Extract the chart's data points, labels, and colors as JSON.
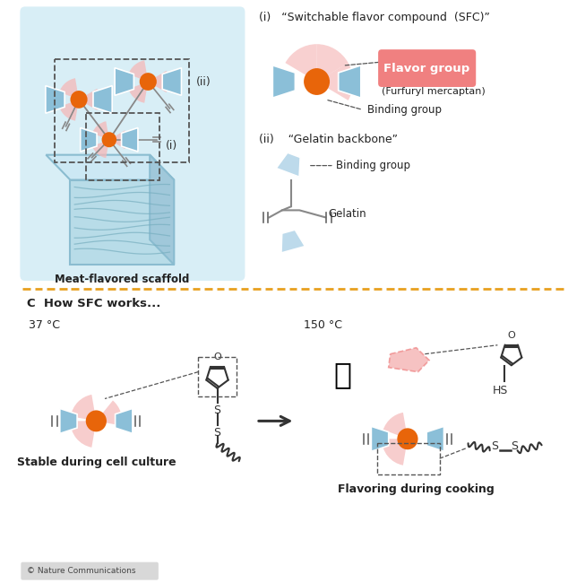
{
  "bg_color": "#ffffff",
  "light_blue": "#a8cfe0",
  "light_blue2": "#bddaeb",
  "blue_cap": "#8bbfd8",
  "orange": "#e8650a",
  "salmon": "#f5b8b8",
  "pink_dark": "#f09090",
  "pink_label_bg": "#f08080",
  "dashed_color": "#555555",
  "orange_dashed": "#e8a020",
  "gray_line": "#888888",
  "scaffold_bg": "#d8eef6",
  "text_color": "#222222",
  "section_c_label": "C  How SFC works...",
  "temp1": "37 °C",
  "temp2": "150 °C",
  "label_stable": "Stable during cell culture",
  "label_flavor": "Flavoring during cooking",
  "label_scaffold": "Meat-flavored scaffold",
  "label_i_title": "(i)   “Switchable flavor compound  (SFC)”",
  "label_ii_title": "(ii)    “Gelatin backbone”",
  "label_flavor_group": "Flavor group",
  "label_furfuryl": "(Furfuryl mercaptan)",
  "label_binding": "Binding group",
  "label_gelatin": "Gelatin",
  "label_binding2": "Binding group",
  "nature_comm": "© Nature Communications"
}
